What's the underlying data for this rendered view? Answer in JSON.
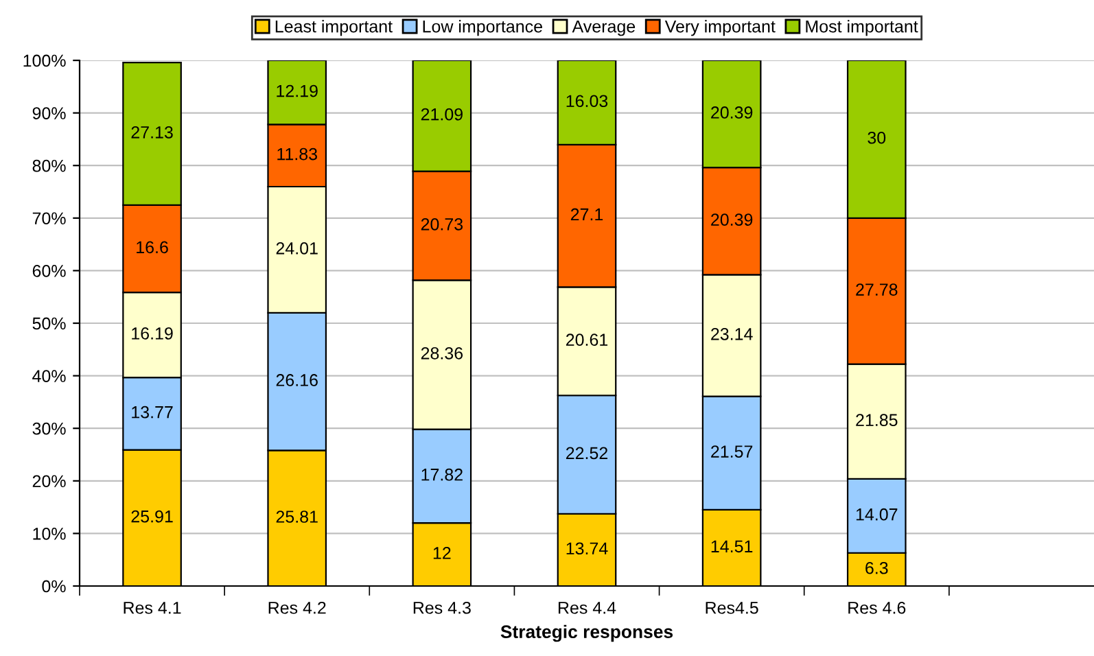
{
  "chart_data": {
    "type": "bar",
    "stacked": true,
    "xlabel": "Strategic responses",
    "categories": [
      "Res 4.1",
      "Res 4.2",
      "Res 4.3",
      "Res 4.4",
      "Res4.5",
      "Res 4.6",
      null
    ],
    "series": [
      {
        "name": "Least important",
        "color": "#ffcc00",
        "values": [
          25.91,
          25.81,
          12,
          13.74,
          14.51,
          6.3,
          null
        ]
      },
      {
        "name": "Low importance",
        "color": "#99ccff",
        "values": [
          13.77,
          26.16,
          17.82,
          22.52,
          21.57,
          14.07,
          null
        ]
      },
      {
        "name": "Average",
        "color": "#ffffcc",
        "values": [
          16.19,
          24.01,
          28.36,
          20.61,
          23.14,
          21.85,
          null
        ]
      },
      {
        "name": "Very important",
        "color": "#ff6600",
        "values": [
          16.6,
          11.83,
          20.73,
          27.1,
          20.39,
          27.78,
          null
        ]
      },
      {
        "name": "Most important",
        "color": "#99cc00",
        "values": [
          27.13,
          12.19,
          21.09,
          16.03,
          20.39,
          30,
          null
        ]
      }
    ],
    "ylim": [
      0,
      100
    ],
    "yticks": [
      {
        "value": 0,
        "label": "0%"
      },
      {
        "value": 10,
        "label": "10%"
      },
      {
        "value": 20,
        "label": "20%"
      },
      {
        "value": 30,
        "label": "30%"
      },
      {
        "value": 40,
        "label": "40%"
      },
      {
        "value": 50,
        "label": "50%"
      },
      {
        "value": 60,
        "label": "60%"
      },
      {
        "value": 70,
        "label": "70%"
      },
      {
        "value": 80,
        "label": "80%"
      },
      {
        "value": 90,
        "label": "90%"
      },
      {
        "value": 100,
        "label": "100%"
      }
    ],
    "grid": "y",
    "legend": "top",
    "data_labels": true
  }
}
